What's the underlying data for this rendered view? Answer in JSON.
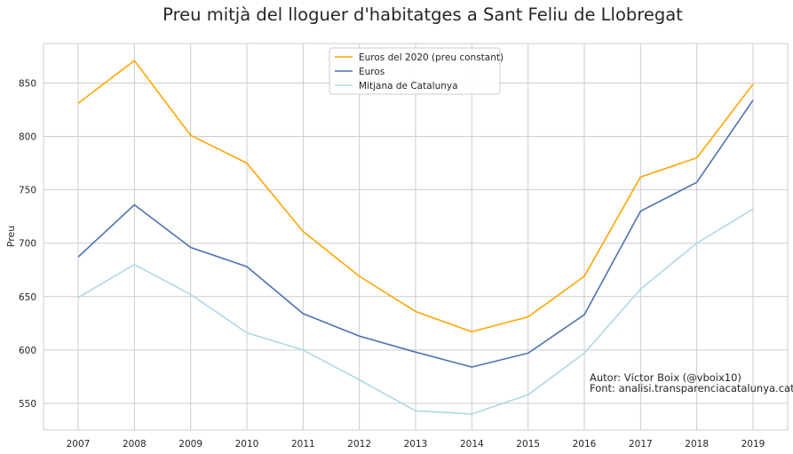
{
  "chart_data": {
    "type": "line",
    "title": "Preu mitjà del lloguer d'habitatges a Sant Feliu de Llobregat",
    "xlabel": "",
    "ylabel": "Preu",
    "x": [
      "2007",
      "2008",
      "2009",
      "2010",
      "2011",
      "2012",
      "2013",
      "2014",
      "2015",
      "2016",
      "2017",
      "2018",
      "2019"
    ],
    "ylim": [
      525,
      887
    ],
    "yticks": [
      550,
      600,
      650,
      700,
      750,
      800,
      850
    ],
    "grid": true,
    "legend_position": "top-center",
    "series": [
      {
        "name": "Euros del 2020 (preu constant)",
        "color": "#ffa500",
        "values": [
          831,
          871,
          801,
          775,
          711,
          669,
          636,
          617,
          631,
          669,
          762,
          780,
          849
        ]
      },
      {
        "name": "Euros",
        "color": "#4c72b0",
        "values": [
          687,
          736,
          696,
          678,
          634,
          613,
          598,
          584,
          597,
          633,
          730,
          757,
          834
        ]
      },
      {
        "name": "Mitjana de Catalunya",
        "color": "#add8e6",
        "values": [
          649,
          680,
          652,
          616,
          600,
          572,
          543,
          540,
          558,
          597,
          657,
          700,
          732
        ]
      }
    ],
    "annotations": [
      "Autor: Víctor Boix (@vboix10)",
      "Font: analisi.transparenciacatalunya.cat"
    ]
  }
}
